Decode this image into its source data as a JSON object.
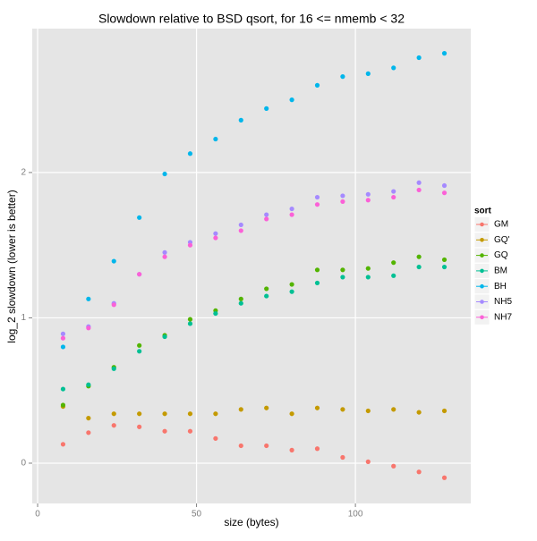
{
  "chart_data": {
    "type": "scatter",
    "title": "Slowdown relative to BSD qsort, for 16 <= nmemb < 32",
    "x_label": "size (bytes)",
    "y_label": "log_2 slowdown (lower is better)",
    "legend_title": "sort",
    "legend_position": "right",
    "grid": true,
    "x": [
      8,
      16,
      24,
      32,
      40,
      48,
      56,
      64,
      72,
      80,
      88,
      96,
      104,
      112,
      120,
      128
    ],
    "xlim": [
      -1.7,
      136.3
    ],
    "xticks": [
      0,
      50,
      100
    ],
    "ylim": [
      -0.277,
      2.99
    ],
    "yticks": [
      0,
      1,
      2
    ],
    "series": [
      {
        "name": "GM",
        "color": "#F8766D",
        "values": [
          0.13,
          0.21,
          0.26,
          0.25,
          0.22,
          0.22,
          0.17,
          0.12,
          0.12,
          0.09,
          0.1,
          0.04,
          0.01,
          -0.02,
          -0.06,
          -0.1
        ]
      },
      {
        "name": "GQ'",
        "color": "#C49A00",
        "values": [
          0.39,
          0.31,
          0.34,
          0.34,
          0.34,
          0.34,
          0.34,
          0.37,
          0.38,
          0.34,
          0.38,
          0.37,
          0.36,
          0.37,
          0.35,
          0.36
        ]
      },
      {
        "name": "GQ",
        "color": "#53B400",
        "values": [
          0.4,
          0.53,
          0.66,
          0.81,
          0.88,
          0.99,
          1.05,
          1.13,
          1.2,
          1.23,
          1.33,
          1.33,
          1.34,
          1.38,
          1.42,
          1.4
        ]
      },
      {
        "name": "BM",
        "color": "#00C094",
        "values": [
          0.51,
          0.54,
          0.65,
          0.77,
          0.87,
          0.96,
          1.03,
          1.1,
          1.15,
          1.18,
          1.24,
          1.28,
          1.28,
          1.29,
          1.35,
          1.35
        ]
      },
      {
        "name": "BH",
        "color": "#00B6EB",
        "values": [
          0.8,
          1.13,
          1.39,
          1.69,
          1.99,
          2.13,
          2.23,
          2.36,
          2.44,
          2.5,
          2.6,
          2.66,
          2.68,
          2.72,
          2.79,
          2.82
        ]
      },
      {
        "name": "NH5",
        "color": "#A58AFF",
        "values": [
          0.89,
          0.94,
          1.1,
          1.3,
          1.45,
          1.52,
          1.58,
          1.64,
          1.71,
          1.75,
          1.83,
          1.84,
          1.85,
          1.87,
          1.93,
          1.91
        ]
      },
      {
        "name": "NH7",
        "color": "#FB61D7",
        "values": [
          0.86,
          0.93,
          1.09,
          1.3,
          1.42,
          1.5,
          1.55,
          1.6,
          1.68,
          1.71,
          1.78,
          1.8,
          1.81,
          1.83,
          1.88,
          1.86
        ]
      }
    ]
  }
}
